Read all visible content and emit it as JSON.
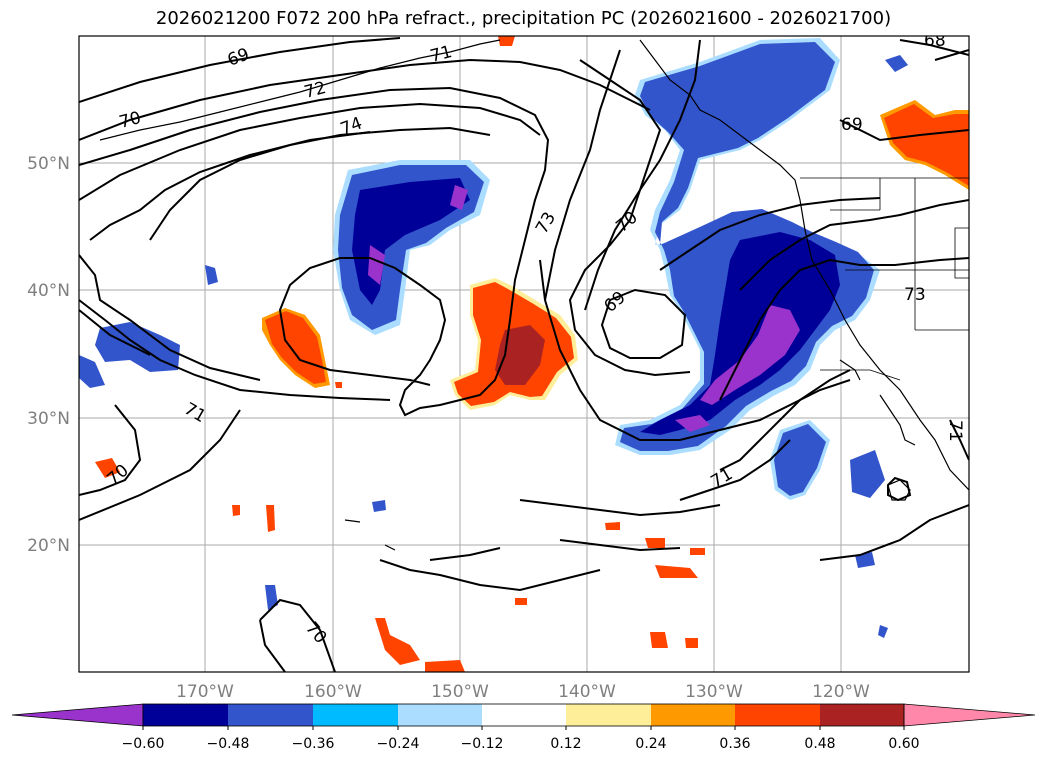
{
  "title": "2026021200 F072 200 hPa refract., precipitation PC (2026021600 - 2026021700)",
  "map": {
    "lat_ticks": [
      "50°N",
      "40°N",
      "30°N",
      "20°N"
    ],
    "lon_ticks": [
      "170°W",
      "160°W",
      "150°W",
      "140°W",
      "130°W",
      "120°W"
    ],
    "contour_labels": [
      "69",
      "70",
      "71",
      "72",
      "74",
      "73",
      "70",
      "69",
      "71",
      "70",
      "71",
      "70",
      "73",
      "69",
      "68",
      "71"
    ]
  },
  "colorbar": {
    "labels": [
      "−0.60",
      "−0.48",
      "−0.36",
      "−0.24",
      "−0.12",
      "0.12",
      "0.24",
      "0.36",
      "0.48",
      "0.60"
    ],
    "colors": [
      "#9933cc",
      "#000099",
      "#3355cc",
      "#00bbff",
      "#aaddff",
      "#ffffff",
      "#ffee99",
      "#ff9900",
      "#ff4400",
      "#aa2222",
      "#ff88aa"
    ]
  }
}
